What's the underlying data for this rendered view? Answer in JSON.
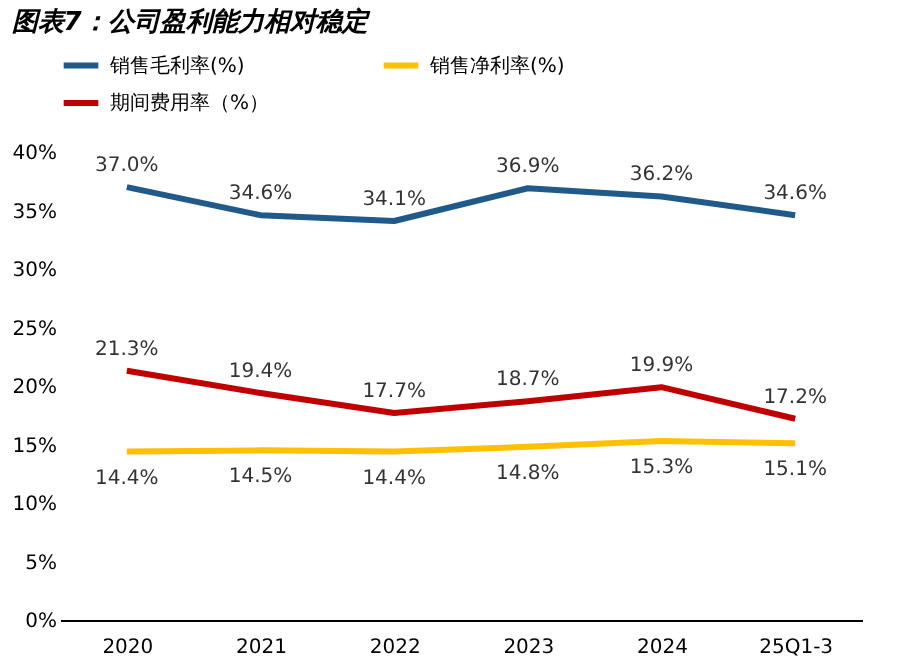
{
  "chart_data": {
    "type": "line",
    "title": "图表7：公司盈利能力相对稳定",
    "categories": [
      "2020",
      "2021",
      "2022",
      "2023",
      "2024",
      "25Q1-3"
    ],
    "series": [
      {
        "name": "销售毛利率(%)",
        "color": "#1f5a8a",
        "values": [
          37.0,
          34.6,
          34.1,
          36.9,
          36.2,
          34.6
        ],
        "value_labels": [
          "37.0%",
          "34.6%",
          "34.1%",
          "36.9%",
          "36.2%",
          "34.6%"
        ]
      },
      {
        "name": "销售净利率(%)",
        "color": "#ffc000",
        "values": [
          14.4,
          14.5,
          14.4,
          14.8,
          15.3,
          15.1
        ],
        "value_labels": [
          "14.4%",
          "14.5%",
          "14.4%",
          "14.8%",
          "15.3%",
          "15.1%"
        ]
      },
      {
        "name": "期间费用率（%）",
        "color": "#c00000",
        "values": [
          21.3,
          19.4,
          17.7,
          18.7,
          19.9,
          17.2
        ],
        "value_labels": [
          "21.3%",
          "19.4%",
          "17.7%",
          "18.7%",
          "19.9%",
          "17.2%"
        ]
      }
    ],
    "ylim": [
      0,
      40
    ],
    "yticks": [
      {
        "value": 0,
        "label": "0%"
      },
      {
        "value": 5,
        "label": "5%"
      },
      {
        "value": 10,
        "label": "10%"
      },
      {
        "value": 15,
        "label": "15%"
      },
      {
        "value": 20,
        "label": "20%"
      },
      {
        "value": 25,
        "label": "25%"
      },
      {
        "value": 30,
        "label": "30%"
      },
      {
        "value": 35,
        "label": "35%"
      },
      {
        "value": 40,
        "label": "40%"
      }
    ],
    "legend": "top",
    "grid": false,
    "marker": "none",
    "line_style": "solid"
  }
}
